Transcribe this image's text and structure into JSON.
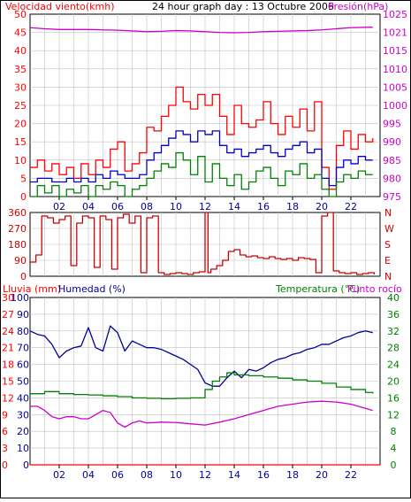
{
  "colors": {
    "plot_bg": "#ffffff",
    "grid": "#c0c0c0",
    "frame": "#000000",
    "wind_speed": "#ff0000",
    "wind_avg": "#0000cc",
    "wind_min": "#008000",
    "pressure": "#cc00cc",
    "direction": "#cc0000",
    "rain": "#ff0000",
    "humidity": "#000099",
    "temperature": "#008000",
    "dewpoint": "#cc00cc"
  },
  "header": {
    "left": "Velocidad viento(kmh)",
    "center": "24 hour graph day : 13 Octubre 2006",
    "right": "Presión(hPa)"
  },
  "x_ticks": [
    "02",
    "04",
    "06",
    "08",
    "10",
    "12",
    "14",
    "16",
    "18",
    "20",
    "22"
  ],
  "chart_data": [
    {
      "type": "line",
      "id": "wind",
      "left_label": "Velocidad viento(kmh)",
      "right_label": "Presión(hPa)",
      "xlim": [
        0,
        24
      ],
      "ylim_left": [
        0,
        50
      ],
      "ylim_right": [
        975,
        1025
      ],
      "yticks_left": [
        "0",
        "5",
        "10",
        "15",
        "20",
        "25",
        "30",
        "35",
        "40",
        "45",
        "50"
      ],
      "yticks_right": [
        "975",
        "980",
        "985",
        "990",
        "995",
        "1000",
        "1005",
        "1010",
        "1015",
        "1021",
        "1025"
      ],
      "grid": true,
      "series": [
        {
          "role": "gust",
          "color": "#ff0000",
          "x": [
            0,
            0.5,
            1,
            1.5,
            2,
            2.5,
            3,
            3.5,
            4,
            4.5,
            5,
            5.5,
            6,
            6.5,
            7,
            7.5,
            8,
            8.5,
            9,
            9.5,
            10,
            10.5,
            11,
            11.5,
            12,
            12.5,
            13,
            13.5,
            14,
            14.5,
            15,
            15.5,
            16,
            16.5,
            17,
            17.5,
            18,
            18.5,
            19,
            19.5,
            20,
            20.5,
            21,
            21.5,
            22,
            22.5,
            23,
            23.5
          ],
          "y": [
            8,
            10,
            7,
            9,
            6,
            8,
            5,
            9,
            6,
            10,
            8,
            13,
            15,
            7,
            9,
            12,
            19,
            18,
            22,
            25,
            30,
            26,
            24,
            28,
            25,
            28,
            22,
            17,
            25,
            20,
            19,
            21,
            26,
            20,
            17,
            22,
            19,
            24,
            18,
            26,
            8,
            2,
            14,
            18,
            13,
            17,
            15,
            16
          ]
        },
        {
          "role": "average",
          "color": "#0000cc",
          "x": [
            0,
            0.5,
            1,
            1.5,
            2,
            2.5,
            3,
            3.5,
            4,
            4.5,
            5,
            5.5,
            6,
            6.5,
            7,
            7.5,
            8,
            8.5,
            9,
            9.5,
            10,
            10.5,
            11,
            11.5,
            12,
            12.5,
            13,
            13.5,
            14,
            14.5,
            15,
            15.5,
            16,
            16.5,
            17,
            17.5,
            18,
            18.5,
            19,
            19.5,
            20,
            20.5,
            21,
            21.5,
            22,
            22.5,
            23,
            23.5
          ],
          "y": [
            4,
            5,
            5,
            4,
            4,
            5,
            4,
            5,
            4,
            6,
            5,
            7,
            6,
            5,
            5,
            6,
            10,
            12,
            14,
            16,
            18,
            17,
            15,
            18,
            17,
            18,
            14,
            12,
            13,
            11,
            12,
            13,
            14,
            12,
            11,
            13,
            14,
            15,
            12,
            13,
            5,
            3,
            8,
            10,
            9,
            11,
            10,
            10
          ]
        },
        {
          "role": "minimum",
          "color": "#008000",
          "x": [
            0,
            0.5,
            1,
            1.5,
            2,
            2.5,
            3,
            3.5,
            4,
            4.5,
            5,
            5.5,
            6,
            6.5,
            7,
            7.5,
            8,
            8.5,
            9,
            9.5,
            10,
            10.5,
            11,
            11.5,
            12,
            12.5,
            13,
            13.5,
            14,
            14.5,
            15,
            15.5,
            16,
            16.5,
            17,
            17.5,
            18,
            18.5,
            19,
            19.5,
            20,
            20.5,
            21,
            21.5,
            22,
            22.5,
            23,
            23.5
          ],
          "y": [
            0,
            3,
            1,
            3,
            0,
            2,
            1,
            3,
            0,
            3,
            2,
            4,
            3,
            0,
            2,
            3,
            5,
            7,
            9,
            8,
            12,
            10,
            6,
            11,
            4,
            9,
            5,
            3,
            6,
            2,
            4,
            7,
            8,
            5,
            3,
            7,
            6,
            9,
            5,
            6,
            2,
            0,
            4,
            6,
            5,
            7,
            6,
            6
          ]
        },
        {
          "role": "pressure",
          "axis": "right",
          "color": "#cc00cc",
          "x": [
            0,
            1,
            2,
            3,
            4,
            5,
            6,
            7,
            8,
            9,
            10,
            11,
            12,
            13,
            14,
            15,
            16,
            17,
            18,
            19,
            20,
            21,
            22,
            23,
            23.5
          ],
          "y": [
            1021.3,
            1021,
            1020.8,
            1020.8,
            1020.8,
            1020.7,
            1020.6,
            1020.4,
            1020.2,
            1020.3,
            1020.5,
            1020.4,
            1020.2,
            1020,
            1019.9,
            1020,
            1020.2,
            1020.3,
            1020.4,
            1020.5,
            1020.7,
            1021,
            1021.3,
            1021.4,
            1021.4
          ]
        }
      ]
    },
    {
      "type": "line",
      "id": "direction",
      "ylim_left": [
        0,
        360
      ],
      "yticks_left": [
        "0",
        "90",
        "180",
        "270",
        "360"
      ],
      "yticks_right": [
        "N",
        "E",
        "S",
        "W",
        "N"
      ],
      "xlim": [
        0,
        24
      ],
      "grid": true,
      "series": [
        {
          "role": "direction",
          "color": "#cc0000",
          "x": [
            0,
            0.4,
            0.8,
            1.2,
            1.6,
            2,
            2.4,
            2.8,
            3.2,
            3.6,
            4,
            4.4,
            4.8,
            5.2,
            5.6,
            6,
            6.4,
            6.8,
            7.2,
            7.6,
            8,
            8.4,
            8.8,
            9.2,
            9.6,
            10,
            10.4,
            10.8,
            11.2,
            11.6,
            12,
            12.2,
            12.4,
            12.8,
            13.2,
            13.6,
            14,
            14.4,
            14.8,
            15.2,
            15.6,
            16,
            16.4,
            16.8,
            17.2,
            17.6,
            18,
            18.4,
            18.8,
            19.2,
            19.6,
            20,
            20.4,
            20.8,
            21.2,
            21.6,
            22,
            22.4,
            22.8,
            23.2,
            23.6
          ],
          "y": [
            80,
            120,
            340,
            330,
            300,
            320,
            340,
            60,
            300,
            340,
            330,
            50,
            340,
            320,
            40,
            330,
            350,
            300,
            340,
            20,
            330,
            340,
            20,
            10,
            15,
            20,
            15,
            10,
            20,
            25,
            360,
            20,
            40,
            60,
            90,
            140,
            150,
            120,
            110,
            115,
            105,
            100,
            110,
            100,
            95,
            100,
            90,
            105,
            100,
            95,
            20,
            340,
            360,
            30,
            20,
            15,
            20,
            10,
            15,
            20,
            10
          ]
        }
      ]
    },
    {
      "type": "line",
      "id": "humidity-temperature",
      "left_label": "Lluvia (mm)",
      "left_label_2": "Humedad (%)",
      "right_label": "Temperatura (°C)",
      "right_label_2": "Punto rocío",
      "xlim": [
        0,
        24
      ],
      "ylim_humidity": [
        0,
        100
      ],
      "ylim_rain": [
        0,
        30
      ],
      "ylim_temperature": [
        0,
        40
      ],
      "yticks_humidity": [
        "0",
        "10",
        "20",
        "30",
        "40",
        "50",
        "60",
        "70",
        "80",
        "90",
        "100"
      ],
      "yticks_rain": [
        "0",
        "3",
        "6",
        "9",
        "12",
        "15",
        "18",
        "21",
        "24",
        "27",
        "30"
      ],
      "yticks_temperature": [
        "0",
        "4",
        "8",
        "12",
        "16",
        "20",
        "24",
        "28",
        "32",
        "36",
        "40"
      ],
      "grid": true,
      "series": [
        {
          "role": "humidity",
          "color": "#000099",
          "x": [
            0,
            0.5,
            1,
            1.5,
            2,
            2.5,
            3,
            3.5,
            4,
            4.5,
            5,
            5.5,
            6,
            6.5,
            7,
            7.5,
            8,
            8.5,
            9,
            9.5,
            10,
            10.5,
            11,
            11.5,
            12,
            12.5,
            13,
            13.5,
            14,
            14.5,
            15,
            15.5,
            16,
            16.5,
            17,
            17.5,
            18,
            18.5,
            19,
            19.5,
            20,
            20.5,
            21,
            21.5,
            22,
            22.5,
            23,
            23.5
          ],
          "y": [
            80,
            78,
            77,
            72,
            64,
            68,
            70,
            71,
            82,
            70,
            68,
            83,
            79,
            68,
            74,
            72,
            70,
            70,
            69,
            67,
            65,
            63,
            60,
            57,
            49,
            47,
            47,
            52,
            56,
            52,
            57,
            56,
            58,
            61,
            63,
            64,
            66,
            67,
            69,
            70,
            72,
            72,
            74,
            76,
            77,
            79,
            80,
            79
          ]
        },
        {
          "role": "temperature",
          "axis": "temperature",
          "color": "#008000",
          "x": [
            0,
            1,
            2,
            3,
            4,
            5,
            6,
            7,
            8,
            9,
            10,
            11,
            12,
            12.5,
            13,
            13.5,
            14,
            15,
            16,
            17,
            18,
            19,
            20,
            21,
            22,
            23,
            23.5
          ],
          "y": [
            17,
            17.5,
            17,
            16.8,
            16.7,
            16.5,
            16.3,
            16,
            15.9,
            15.8,
            15.9,
            16,
            18,
            20,
            21,
            22,
            21.5,
            21.3,
            21,
            20.7,
            20.3,
            20,
            19.5,
            18.6,
            18,
            17.3,
            17
          ]
        },
        {
          "role": "dewpoint",
          "axis": "temperature",
          "color": "#cc00cc",
          "x": [
            0,
            0.5,
            1,
            1.5,
            2,
            2.5,
            3,
            3.5,
            4,
            4.5,
            5,
            5.5,
            6,
            6.5,
            7,
            7.5,
            8,
            9,
            10,
            11,
            12,
            13,
            14,
            15,
            16,
            17,
            18,
            19,
            20,
            20.5,
            21,
            22,
            23,
            23.5
          ],
          "y": [
            14,
            14,
            13,
            11.5,
            11,
            11.5,
            11.5,
            11,
            11,
            12,
            13,
            12.5,
            10,
            9,
            10,
            10.5,
            10,
            10.2,
            10.1,
            9.8,
            9.5,
            10.2,
            11,
            12,
            13,
            14,
            14.5,
            15,
            15.2,
            15.1,
            15,
            14.5,
            13.5,
            13
          ]
        },
        {
          "role": "rain",
          "axis": "rain",
          "color": "#ff0000",
          "x": [
            0,
            24
          ],
          "y": [
            0,
            0
          ]
        }
      ]
    }
  ]
}
